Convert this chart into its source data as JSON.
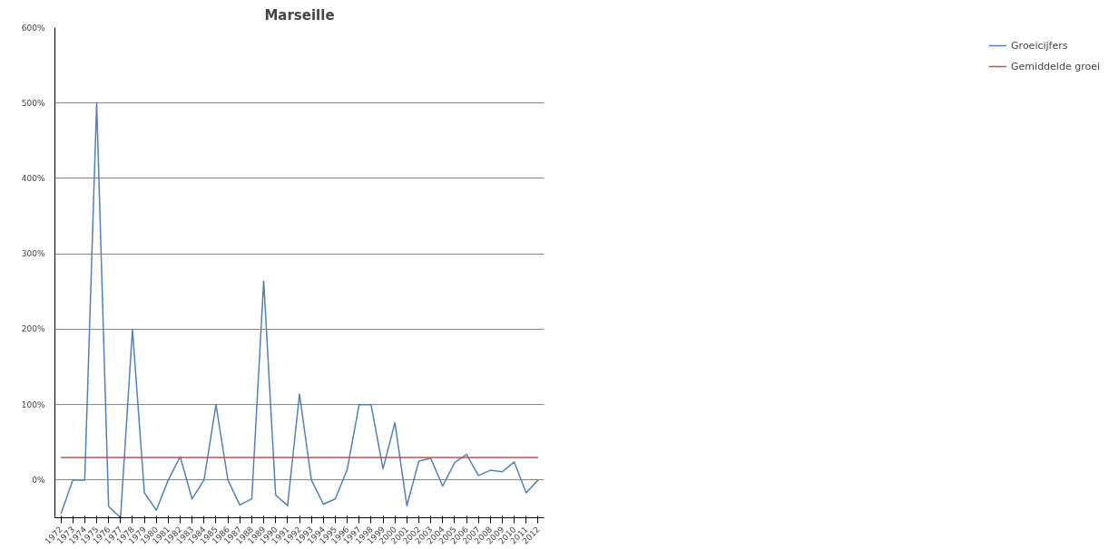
{
  "chart_data": {
    "type": "line",
    "title": "Marseille",
    "categories": [
      "1972",
      "1973",
      "1974",
      "1975",
      "1976",
      "1977",
      "1978",
      "1979",
      "1980",
      "1981",
      "1982",
      "1983",
      "1984",
      "1985",
      "1986",
      "1987",
      "1988",
      "1989",
      "1990",
      "1991",
      "1992",
      "1993",
      "1994",
      "1995",
      "1996",
      "1997",
      "1998",
      "1999",
      "2000",
      "2001",
      "2002",
      "2003",
      "2004",
      "2005",
      "2006",
      "2007",
      "2008",
      "2009",
      "2010",
      "2011",
      "2012"
    ],
    "series": [
      {
        "name": "Groeicijfers",
        "color": "#4f81bd",
        "values": [
          -45,
          0,
          0,
          500,
          -35,
          -50,
          200,
          -17,
          -40,
          0,
          31,
          -25,
          0,
          100,
          0,
          -33,
          -25,
          264,
          -20,
          -34,
          114,
          0,
          -32,
          -25,
          14,
          100,
          100,
          15,
          76,
          -34,
          25,
          29,
          -8,
          23,
          34,
          6,
          13,
          11,
          24,
          -17,
          0
        ]
      },
      {
        "name": "Gemiddelde groei",
        "color": "#c0504d",
        "values": [
          30,
          30,
          30,
          30,
          30,
          30,
          30,
          30,
          30,
          30,
          30,
          30,
          30,
          30,
          30,
          30,
          30,
          30,
          30,
          30,
          30,
          30,
          30,
          30,
          30,
          30,
          30,
          30,
          30,
          30,
          30,
          30,
          30,
          30,
          30,
          30,
          30,
          30,
          30,
          30,
          30
        ]
      }
    ],
    "ylim": [
      -50,
      600
    ],
    "yticks": [
      {
        "value": 0,
        "label": "0%"
      },
      {
        "value": 100,
        "label": "100%"
      },
      {
        "value": 200,
        "label": "200%"
      },
      {
        "value": 300,
        "label": "300%"
      },
      {
        "value": 400,
        "label": "400%"
      },
      {
        "value": 500,
        "label": "500%"
      },
      {
        "value": 600,
        "label": "600%"
      }
    ],
    "grid": "y",
    "legend": "right",
    "marker": "none",
    "line_style": "solid"
  }
}
